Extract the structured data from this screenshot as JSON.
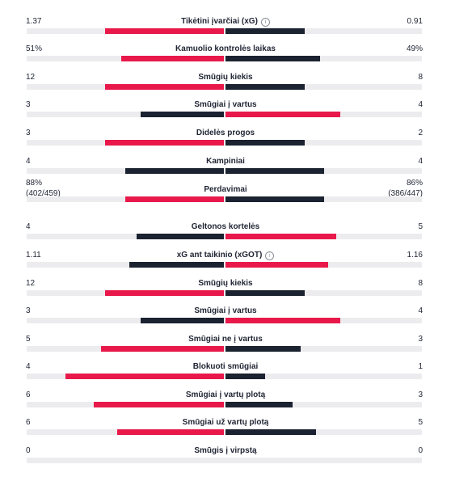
{
  "colors": {
    "leader": "#e8194a",
    "trailer": "#1b2230",
    "track": "#ececef"
  },
  "stats": [
    {
      "label": "Tikėtini įvarčiai (xG)",
      "info": true,
      "home": "1.37",
      "away": "0.91",
      "home_bar": 0.3,
      "away_bar": 0.2,
      "leader": "home"
    },
    {
      "label": "Kamuolio kontrolės laikas",
      "info": false,
      "home": "51%",
      "away": "49%",
      "home_bar": 0.26,
      "away_bar": 0.24,
      "leader": "home"
    },
    {
      "label": "Smūgių kiekis",
      "info": false,
      "home": "12",
      "away": "8",
      "home_bar": 0.3,
      "away_bar": 0.2,
      "leader": "home"
    },
    {
      "label": "Smūgiai į vartus",
      "info": false,
      "home": "3",
      "away": "4",
      "home_bar": 0.21,
      "away_bar": 0.29,
      "leader": "away"
    },
    {
      "label": "Didelės progos",
      "info": false,
      "home": "3",
      "away": "2",
      "home_bar": 0.3,
      "away_bar": 0.2,
      "leader": "home"
    },
    {
      "label": "Kampiniai",
      "info": false,
      "home": "4",
      "away": "4",
      "home_bar": 0.25,
      "away_bar": 0.25,
      "leader": "none"
    },
    {
      "label": "Perdavimai",
      "info": false,
      "home": "88%",
      "home_sub": "(402/459)",
      "away": "86%",
      "away_sub": "(386/447)",
      "home_bar": 0.25,
      "away_bar": 0.25,
      "leader": "home"
    },
    {
      "label": "Geltonos kortelės",
      "info": false,
      "home": "4",
      "away": "5",
      "home_bar": 0.22,
      "away_bar": 0.28,
      "leader": "away"
    },
    {
      "label": "xG ant taikinio (xGOT)",
      "info": true,
      "home": "1.11",
      "away": "1.16",
      "home_bar": 0.24,
      "away_bar": 0.26,
      "leader": "away"
    },
    {
      "label": "Smūgių kiekis",
      "info": false,
      "home": "12",
      "away": "8",
      "home_bar": 0.3,
      "away_bar": 0.2,
      "leader": "home"
    },
    {
      "label": "Smūgiai į vartus",
      "info": false,
      "home": "3",
      "away": "4",
      "home_bar": 0.21,
      "away_bar": 0.29,
      "leader": "away"
    },
    {
      "label": "Smūgiai ne į vartus",
      "info": false,
      "home": "5",
      "away": "3",
      "home_bar": 0.31,
      "away_bar": 0.19,
      "leader": "home"
    },
    {
      "label": "Blokuoti smūgiai",
      "info": false,
      "home": "4",
      "away": "1",
      "home_bar": 0.4,
      "away_bar": 0.1,
      "leader": "home"
    },
    {
      "label": "Smūgiai į vartų plotą",
      "info": false,
      "home": "6",
      "away": "3",
      "home_bar": 0.33,
      "away_bar": 0.17,
      "leader": "home"
    },
    {
      "label": "Smūgiai už vartų plotą",
      "info": false,
      "home": "6",
      "away": "5",
      "home_bar": 0.27,
      "away_bar": 0.23,
      "leader": "home"
    },
    {
      "label": "Smūgis į virpstą",
      "info": false,
      "home": "0",
      "away": "0",
      "home_bar": 0,
      "away_bar": 0,
      "leader": "none"
    }
  ]
}
